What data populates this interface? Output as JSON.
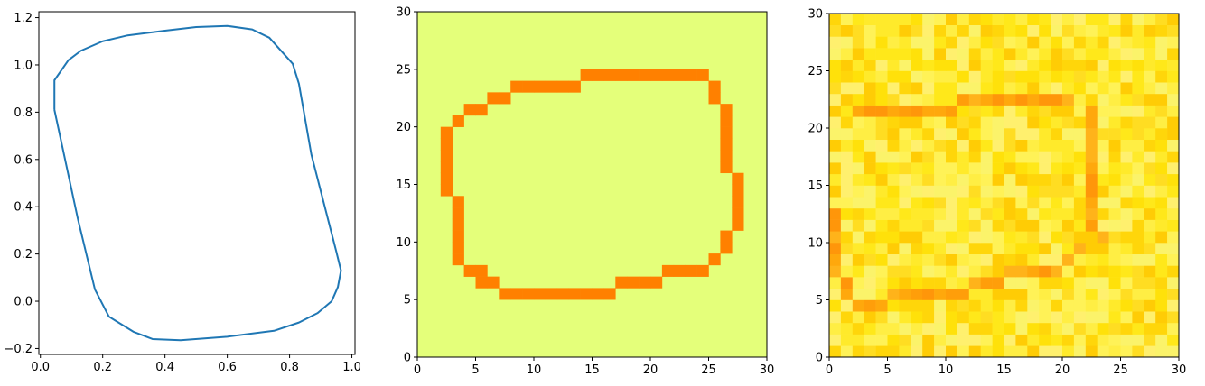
{
  "chart_data": [
    {
      "type": "line",
      "xlim": [
        -0.005,
        1.01
      ],
      "ylim": [
        -0.225,
        1.225
      ],
      "xticks": [
        0.0,
        0.2,
        0.4,
        0.6,
        0.8,
        1.0
      ],
      "xtick_labels": [
        "0.0",
        "0.2",
        "0.4",
        "0.6",
        "0.8",
        "1.0"
      ],
      "yticks": [
        -0.2,
        0.0,
        0.2,
        0.4,
        0.6,
        0.8,
        1.0,
        1.2
      ],
      "ytick_labels": [
        "−0.2",
        "0.0",
        "0.2",
        "0.4",
        "0.6",
        "0.8",
        "1.0",
        "1.2"
      ],
      "grid": false,
      "series": [
        {
          "color": "#1f77b4",
          "x": [
            0.045,
            0.045,
            0.09,
            0.13,
            0.2,
            0.28,
            0.4,
            0.5,
            0.6,
            0.68,
            0.735,
            0.81,
            0.83,
            0.87,
            0.95,
            0.965,
            0.955,
            0.935,
            0.89,
            0.83,
            0.75,
            0.6,
            0.45,
            0.36,
            0.3,
            0.22,
            0.175,
            0.12,
            0.045
          ],
          "y": [
            0.81,
            0.935,
            1.02,
            1.06,
            1.1,
            1.125,
            1.145,
            1.16,
            1.165,
            1.15,
            1.115,
            1.005,
            0.92,
            0.62,
            0.21,
            0.13,
            0.06,
            0.0,
            -0.05,
            -0.09,
            -0.125,
            -0.15,
            -0.165,
            -0.16,
            -0.13,
            -0.065,
            0.05,
            0.35,
            0.81
          ]
        }
      ]
    },
    {
      "type": "heatmap",
      "xlim": [
        0,
        30
      ],
      "ylim": [
        0,
        30
      ],
      "xticks": [
        0,
        5,
        10,
        15,
        20,
        25,
        30
      ],
      "yticks": [
        0,
        5,
        10,
        15,
        20,
        25,
        30
      ],
      "colormap": "Wistia",
      "background_color": "#e4ff7a",
      "mark_color": "#ff8000",
      "marked_cells": [
        [
          14,
          24
        ],
        [
          15,
          24
        ],
        [
          16,
          24
        ],
        [
          17,
          24
        ],
        [
          18,
          24
        ],
        [
          19,
          24
        ],
        [
          20,
          24
        ],
        [
          21,
          24
        ],
        [
          22,
          24
        ],
        [
          23,
          24
        ],
        [
          24,
          24
        ],
        [
          8,
          23
        ],
        [
          9,
          23
        ],
        [
          10,
          23
        ],
        [
          11,
          23
        ],
        [
          12,
          23
        ],
        [
          13,
          23
        ],
        [
          25,
          23
        ],
        [
          25,
          22
        ],
        [
          6,
          22
        ],
        [
          7,
          22
        ],
        [
          26,
          21
        ],
        [
          4,
          21
        ],
        [
          5,
          21
        ],
        [
          26,
          20
        ],
        [
          3,
          20
        ],
        [
          26,
          19
        ],
        [
          26,
          18
        ],
        [
          26,
          17
        ],
        [
          26,
          16
        ],
        [
          2,
          19
        ],
        [
          2,
          18
        ],
        [
          2,
          17
        ],
        [
          2,
          16
        ],
        [
          2,
          15
        ],
        [
          2,
          14
        ],
        [
          27,
          15
        ],
        [
          27,
          14
        ],
        [
          27,
          13
        ],
        [
          27,
          12
        ],
        [
          27,
          11
        ],
        [
          3,
          13
        ],
        [
          3,
          12
        ],
        [
          3,
          11
        ],
        [
          3,
          10
        ],
        [
          3,
          9
        ],
        [
          3,
          8
        ],
        [
          26,
          10
        ],
        [
          26,
          9
        ],
        [
          25,
          8
        ],
        [
          21,
          7
        ],
        [
          22,
          7
        ],
        [
          23,
          7
        ],
        [
          24,
          7
        ],
        [
          4,
          7
        ],
        [
          5,
          7
        ],
        [
          5,
          6
        ],
        [
          17,
          6
        ],
        [
          18,
          6
        ],
        [
          19,
          6
        ],
        [
          20,
          6
        ],
        [
          6,
          6
        ],
        [
          7,
          5
        ],
        [
          8,
          5
        ],
        [
          9,
          5
        ],
        [
          10,
          5
        ],
        [
          11,
          5
        ],
        [
          12,
          5
        ],
        [
          13,
          5
        ],
        [
          14,
          5
        ],
        [
          15,
          5
        ],
        [
          16,
          5
        ]
      ]
    },
    {
      "type": "heatmap",
      "xlim": [
        0,
        30
      ],
      "ylim": [
        0,
        30
      ],
      "xticks": [
        0,
        5,
        10,
        15,
        20,
        25,
        30
      ],
      "yticks": [
        0,
        5,
        10,
        15,
        20,
        25,
        30
      ],
      "colormap": "Wistia (noisy)",
      "value_range": [
        0.0,
        1.0
      ],
      "noise_colors": [
        "#ffe81a",
        "#ffea2b",
        "#ffee44",
        "#fff257",
        "#fbf36a",
        "#ffe10a",
        "#ffd60a",
        "#ffcc05",
        "#fff06e",
        "#ffdd22"
      ],
      "mark_colors": [
        "#ff9e0a",
        "#ffa80c",
        "#ff960a",
        "#ffb31a"
      ],
      "marked_cells": [
        [
          11,
          22
        ],
        [
          12,
          22
        ],
        [
          13,
          22
        ],
        [
          14,
          22
        ],
        [
          15,
          22
        ],
        [
          16,
          22
        ],
        [
          17,
          22
        ],
        [
          18,
          22
        ],
        [
          19,
          22
        ],
        [
          20,
          22
        ],
        [
          2,
          21
        ],
        [
          3,
          21
        ],
        [
          4,
          21
        ],
        [
          5,
          21
        ],
        [
          6,
          21
        ],
        [
          7,
          21
        ],
        [
          8,
          21
        ],
        [
          9,
          21
        ],
        [
          10,
          21
        ],
        [
          22,
          21
        ],
        [
          22,
          20
        ],
        [
          22,
          19
        ],
        [
          22,
          18
        ],
        [
          22,
          17
        ],
        [
          22,
          16
        ],
        [
          22,
          15
        ],
        [
          22,
          14
        ],
        [
          22,
          13
        ],
        [
          22,
          12
        ],
        [
          22,
          11
        ],
        [
          23,
          10
        ],
        [
          0,
          12
        ],
        [
          0,
          11
        ],
        [
          0,
          10
        ],
        [
          0,
          9
        ],
        [
          0,
          8
        ],
        [
          0,
          7
        ],
        [
          1,
          6
        ],
        [
          1,
          5
        ],
        [
          2,
          4
        ],
        [
          3,
          4
        ],
        [
          4,
          4
        ],
        [
          5,
          5
        ],
        [
          6,
          5
        ],
        [
          7,
          5
        ],
        [
          8,
          5
        ],
        [
          9,
          5
        ],
        [
          10,
          5
        ],
        [
          11,
          5
        ],
        [
          12,
          6
        ],
        [
          13,
          6
        ],
        [
          14,
          6
        ],
        [
          15,
          7
        ],
        [
          16,
          7
        ],
        [
          17,
          7
        ],
        [
          18,
          7
        ],
        [
          19,
          7
        ],
        [
          20,
          8
        ],
        [
          21,
          9
        ]
      ]
    }
  ]
}
